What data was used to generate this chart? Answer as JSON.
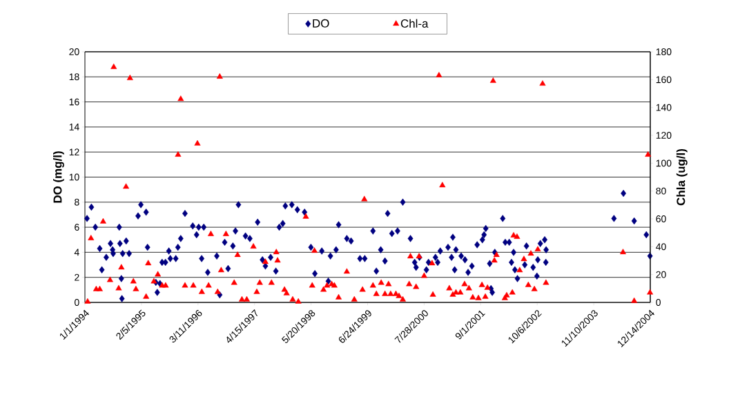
{
  "chart_data": {
    "type": "scatter",
    "ylabel": "DO (mg/l)",
    "y2label": "Chla (ug/l)",
    "xlim": [
      "1994-01-01",
      "2004-12-14"
    ],
    "xticks": [
      {
        "value": "1994-01-01",
        "label": "1/1/1994"
      },
      {
        "value": "1995-02-05",
        "label": "2/5/1995"
      },
      {
        "value": "1996-03-11",
        "label": "3/11/1996"
      },
      {
        "value": "1997-04-15",
        "label": "4/15/1997"
      },
      {
        "value": "1998-05-20",
        "label": "5/20/1998"
      },
      {
        "value": "1999-06-24",
        "label": "6/24/1999"
      },
      {
        "value": "2000-07-28",
        "label": "7/28/2000"
      },
      {
        "value": "2001-09-01",
        "label": "9/1/2001"
      },
      {
        "value": "2002-10-06",
        "label": "10/6/2002"
      },
      {
        "value": "2003-11-10",
        "label": "11/10/2003"
      },
      {
        "value": "2004-12-14",
        "label": "12/14/2004"
      }
    ],
    "ylim": [
      0,
      20
    ],
    "yticks": [
      0,
      2,
      4,
      6,
      8,
      10,
      12,
      14,
      16,
      18,
      20
    ],
    "y2lim": [
      0,
      180
    ],
    "y2ticks": [
      0,
      20,
      40,
      60,
      80,
      100,
      120,
      140,
      160,
      180
    ],
    "grid": "y",
    "legend": "top",
    "series": [
      {
        "name": "DO",
        "color": "#000080",
        "marker": "diamond",
        "x": [
          "1994-01-16",
          "1994-02-16",
          "1994-03-16",
          "1994-04-16",
          "1994-05-01",
          "1994-06-01",
          "1994-07-01",
          "1994-07-16",
          "1994-07-20",
          "1994-09-01",
          "1994-09-16",
          "1994-09-20",
          "1994-09-06",
          "1994-09-25",
          "1994-10-20",
          "1994-11-10",
          "1995-01-12",
          "1995-02-01",
          "1995-03-10",
          "1995-03-20",
          "1995-05-18",
          "1995-05-28",
          "1995-06-16",
          "1995-07-01",
          "1995-07-25",
          "1995-08-18",
          "1995-08-28",
          "1995-10-06",
          "1995-10-21",
          "1995-11-10",
          "1995-12-10",
          "1996-02-03",
          "1996-03-01",
          "1996-03-16",
          "1996-04-21",
          "1996-04-06",
          "1996-05-19",
          "1996-07-22",
          "1996-08-12",
          "1996-09-16",
          "1996-10-10",
          "1996-11-13",
          "1996-12-22",
          "1996-12-01",
          "1997-02-10",
          "1997-03-13",
          "1997-05-07",
          "1997-06-10",
          "1997-07-01",
          "1997-08-07",
          "1997-09-13",
          "1997-10-07",
          "1997-11-01",
          "1997-11-19",
          "1998-01-04",
          "1998-02-12",
          "1998-04-04",
          "1998-05-19",
          "1998-06-16",
          "1998-08-04",
          "1998-09-19",
          "1998-10-04",
          "1998-11-13",
          "1998-12-01",
          "1999-01-28",
          "1999-02-27",
          "1999-05-01",
          "1999-06-04",
          "1999-08-01",
          "1999-08-25",
          "1999-09-25",
          "1999-10-25",
          "1999-11-13",
          "1999-12-13",
          "2000-01-22",
          "2000-02-28",
          "2000-04-22",
          "2000-05-22",
          "2000-06-01",
          "2000-06-25",
          "2000-08-13",
          "2000-08-28",
          "2000-10-16",
          "2000-11-01",
          "2000-11-19",
          "2001-01-13",
          "2001-02-16",
          "2001-02-07",
          "2001-03-01",
          "2001-03-10",
          "2001-04-16",
          "2001-05-13",
          "2001-06-04",
          "2001-07-01",
          "2001-08-07",
          "2001-09-13",
          "2001-09-25",
          "2001-10-07",
          "2001-11-04",
          "2001-11-13",
          "2001-11-22",
          "2001-12-10",
          "2002-02-04",
          "2002-02-22",
          "2002-03-22",
          "2002-04-07",
          "2002-04-22",
          "2002-05-01",
          "2002-05-19",
          "2002-07-10",
          "2002-07-22",
          "2002-09-07",
          "2002-10-04",
          "2002-10-10",
          "2002-10-28",
          "2002-12-06",
          "2002-12-08",
          "2002-11-28",
          "2004-04-01",
          "2004-06-07",
          "2004-08-22",
          "2004-11-16",
          "2004-12-12"
        ],
        "values": [
          6.7,
          7.6,
          6.0,
          4.3,
          2.6,
          3.6,
          4.7,
          4.2,
          3.9,
          6.0,
          1.9,
          0.3,
          4.7,
          3.9,
          4.9,
          3.9,
          6.9,
          7.8,
          7.2,
          4.4,
          1.6,
          0.8,
          1.5,
          3.2,
          3.2,
          4.1,
          3.5,
          3.5,
          4.4,
          5.1,
          7.1,
          6.1,
          5.4,
          6.0,
          6.0,
          3.5,
          2.4,
          3.7,
          0.6,
          4.8,
          2.7,
          4.5,
          7.8,
          5.7,
          5.3,
          5.1,
          6.4,
          3.4,
          2.9,
          3.6,
          2.5,
          6.0,
          6.3,
          7.7,
          7.8,
          7.4,
          7.2,
          4.4,
          2.3,
          4.1,
          1.7,
          3.7,
          4.2,
          6.2,
          5.1,
          4.9,
          3.5,
          3.5,
          5.7,
          2.5,
          4.2,
          3.3,
          7.1,
          5.5,
          5.7,
          8.0,
          5.1,
          3.2,
          2.8,
          3.6,
          2.6,
          3.2,
          3.6,
          3.2,
          4.1,
          4.4,
          5.2,
          3.6,
          2.6,
          4.2,
          3.7,
          3.4,
          2.4,
          2.9,
          4.6,
          5.0,
          5.4,
          5.9,
          3.1,
          1.1,
          0.8,
          4.0,
          6.7,
          4.8,
          4.8,
          3.2,
          4.0,
          2.6,
          1.9,
          3.0,
          4.5,
          2.8,
          2.1,
          3.4,
          4.7,
          3.2,
          4.2,
          5.0,
          6.7,
          8.7,
          6.5,
          5.4,
          3.7
        ]
      },
      {
        "name": "Chl-a",
        "color": "#ff0000",
        "marker": "triangle",
        "axis": "y2",
        "x": [
          "1994-01-20",
          "1994-02-13",
          "1994-03-22",
          "1994-04-16",
          "1994-05-10",
          "1994-06-28",
          "1994-07-24",
          "1994-08-28",
          "1994-09-16",
          "1994-10-19",
          "1994-11-16",
          "1994-12-10",
          "1994-12-28",
          "1995-03-10",
          "1995-03-25",
          "1995-05-04",
          "1995-06-01",
          "1995-07-02",
          "1995-07-26",
          "1995-10-22",
          "1995-11-10",
          "1995-12-10",
          "1996-02-07",
          "1996-03-07",
          "1996-04-07",
          "1996-05-25",
          "1996-06-10",
          "1996-07-28",
          "1996-08-12",
          "1996-08-22",
          "1996-09-25",
          "1996-11-22",
          "1996-12-16",
          "1997-01-16",
          "1997-02-19",
          "1997-04-07",
          "1997-05-01",
          "1997-05-22",
          "1997-07-01",
          "1997-08-13",
          "1997-09-16",
          "1997-09-25",
          "1997-11-13",
          "1997-11-28",
          "1998-01-10",
          "1998-02-19",
          "1998-04-13",
          "1998-05-28",
          "1998-06-13",
          "1998-08-16",
          "1998-09-10",
          "1998-10-13",
          "1998-11-01",
          "1998-12-01",
          "1999-01-28",
          "1999-03-22",
          "1999-05-19",
          "1999-06-01",
          "1999-08-01",
          "1999-08-25",
          "1999-09-28",
          "1999-10-25",
          "1999-11-19",
          "1999-12-04",
          "2000-01-10",
          "2000-02-01",
          "2000-02-28",
          "2000-04-13",
          "2000-04-22",
          "2000-06-01",
          "2000-06-22",
          "2000-07-28",
          "2000-09-22",
          "2000-09-28",
          "2000-11-10",
          "2000-12-04",
          "2001-01-22",
          "2001-02-16",
          "2001-03-10",
          "2001-04-10",
          "2001-05-10",
          "2001-06-10",
          "2001-07-07",
          "2001-08-16",
          "2001-09-10",
          "2001-10-04",
          "2001-10-19",
          "2001-11-28",
          "2001-12-07",
          "2001-12-22",
          "2002-02-19",
          "2002-03-04",
          "2002-04-13",
          "2002-04-22",
          "2002-05-16",
          "2002-06-04",
          "2002-07-04",
          "2002-08-04",
          "2002-08-22",
          "2002-09-16",
          "2002-10-10",
          "2002-11-13",
          "2002-12-07",
          "2004-06-04",
          "2004-08-22",
          "2004-11-28",
          "2004-12-12"
        ],
        "values": [
          0.5,
          46,
          9.4,
          9.4,
          58,
          16,
          169,
          10,
          25,
          83,
          161,
          15,
          9.4,
          4,
          28,
          15,
          20,
          12,
          12,
          106,
          146,
          12,
          12,
          114,
          7.4,
          12,
          49,
          7.4,
          162,
          23,
          49,
          14,
          34,
          2,
          2,
          40,
          7.4,
          14,
          29,
          14,
          36,
          30,
          9,
          6.4,
          2,
          0.5,
          61.5,
          12,
          37,
          9,
          12,
          13,
          12,
          3.5,
          22,
          2,
          9,
          74,
          12,
          6,
          14,
          6,
          13,
          6,
          6,
          4.5,
          2,
          13,
          33,
          11,
          33,
          19,
          28,
          5.5,
          163,
          84,
          10,
          5.5,
          7,
          7,
          13,
          10,
          3.5,
          3,
          12.4,
          4,
          10.4,
          159,
          30,
          34,
          3,
          5,
          7,
          48,
          47,
          23,
          31,
          12.4,
          35,
          9.4,
          38,
          157,
          14,
          36,
          1,
          106,
          7
        ]
      }
    ]
  }
}
